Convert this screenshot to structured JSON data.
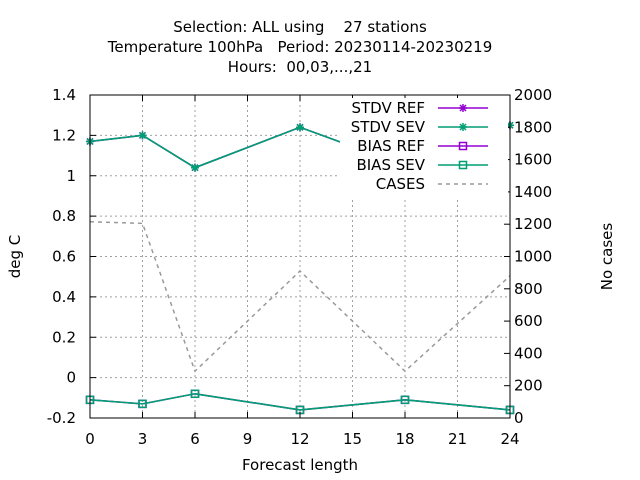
{
  "chart_data": {
    "type": "line",
    "title": [
      "Selection: ALL using    27 stations",
      "Temperature 100hPa   Period: 20230114-20230219",
      "Hours:  00,03,...,21"
    ],
    "xlabel": "Forecast length",
    "ylabel": "deg C",
    "y2label": "No cases",
    "xlim": [
      0,
      24
    ],
    "ylim": [
      -0.2,
      1.4
    ],
    "y2lim": [
      0,
      2000
    ],
    "xticks": [
      0,
      3,
      6,
      9,
      12,
      15,
      18,
      21,
      24
    ],
    "yticks": [
      "-0.2",
      "0",
      "0.2",
      "0.4",
      "0.6",
      "0.8",
      "1",
      "1.2",
      "1.4"
    ],
    "y2ticks": [
      "0",
      "200",
      "400",
      "600",
      "800",
      "1000",
      "1200",
      "1400",
      "1600",
      "1800",
      "2000"
    ],
    "grid": true,
    "legend_position": "top-right",
    "x": [
      0,
      3,
      6,
      12,
      18,
      24
    ],
    "series": [
      {
        "name": "STDV REF",
        "axis": "y",
        "color": "#9400d3",
        "marker": "star",
        "dash": false,
        "values": [
          1.17,
          1.2,
          1.04,
          1.24,
          1.05,
          1.25
        ]
      },
      {
        "name": "STDV SEV",
        "axis": "y",
        "color": "#009e73",
        "marker": "star",
        "dash": false,
        "values": [
          1.17,
          1.2,
          1.04,
          1.24,
          1.05,
          1.25
        ]
      },
      {
        "name": "BIAS REF",
        "axis": "y",
        "color": "#9400d3",
        "marker": "square",
        "dash": false,
        "values": [
          -0.11,
          -0.13,
          -0.08,
          -0.16,
          -0.11,
          -0.16
        ]
      },
      {
        "name": "BIAS SEV",
        "axis": "y",
        "color": "#009e73",
        "marker": "square",
        "dash": false,
        "values": [
          -0.11,
          -0.13,
          -0.08,
          -0.16,
          -0.11,
          -0.16
        ]
      },
      {
        "name": "CASES",
        "axis": "y2",
        "color": "#999999",
        "marker": "none",
        "dash": true,
        "values": [
          1215,
          1205,
          290,
          910,
          290,
          880
        ]
      }
    ]
  }
}
